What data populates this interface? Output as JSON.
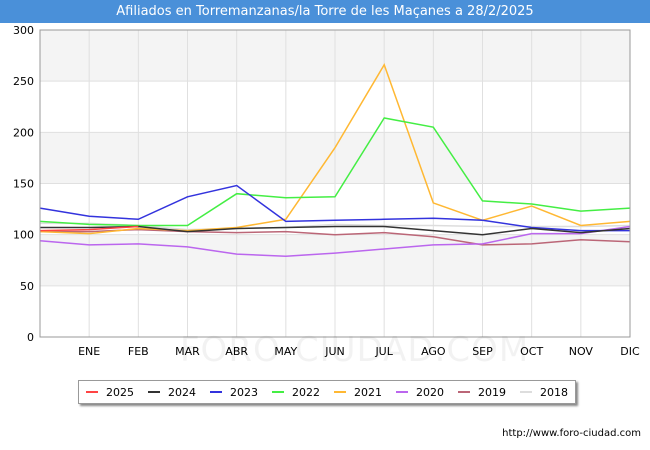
{
  "chart_data": {
    "type": "line",
    "title": "Afiliados en Torremanzanas/la Torre de les Maçanes a 28/2/2025",
    "categories": [
      "",
      "ENE",
      "FEB",
      "MAR",
      "ABR",
      "MAY",
      "JUN",
      "JUL",
      "AGO",
      "SEP",
      "OCT",
      "NOV",
      "DIC"
    ],
    "ylim": [
      0,
      300
    ],
    "yticks": [
      0,
      50,
      100,
      150,
      200,
      250,
      300
    ],
    "grid": true,
    "legend_position": "bottom",
    "series": [
      {
        "name": "2025",
        "color": "#ff4444",
        "values": [
          104,
          105,
          108,
          null,
          null,
          null,
          null,
          null,
          null,
          null,
          null,
          null,
          null
        ]
      },
      {
        "name": "2024",
        "color": "#333333",
        "values": [
          107,
          107,
          108,
          103,
          106,
          107,
          108,
          108,
          104,
          100,
          106,
          102,
          106
        ]
      },
      {
        "name": "2023",
        "color": "#3333dd",
        "values": [
          126,
          118,
          115,
          137,
          148,
          113,
          114,
          115,
          116,
          114,
          107,
          104,
          104
        ]
      },
      {
        "name": "2022",
        "color": "#44ee44",
        "values": [
          113,
          110,
          109,
          109,
          140,
          136,
          137,
          214,
          205,
          133,
          130,
          123,
          126
        ]
      },
      {
        "name": "2021",
        "color": "#ffb833",
        "values": [
          103,
          101,
          106,
          104,
          107,
          115,
          185,
          266,
          131,
          114,
          128,
          109,
          113
        ]
      },
      {
        "name": "2020",
        "color": "#bb66ee",
        "values": [
          94,
          90,
          91,
          88,
          81,
          79,
          82,
          86,
          90,
          91,
          101,
          101,
          108
        ]
      },
      {
        "name": "2019",
        "color": "#bb6677",
        "values": [
          103,
          103,
          105,
          103,
          102,
          103,
          100,
          102,
          98,
          90,
          91,
          95,
          93
        ]
      },
      {
        "name": "2018",
        "color": "#dddddd",
        "values": [
          111,
          111,
          109,
          105,
          106,
          107,
          110,
          109,
          109,
          108,
          108,
          108,
          109
        ]
      }
    ]
  },
  "footer": {
    "url": "http://www.foro-ciudad.com"
  },
  "watermark": "FORO-CIUDAD.COM"
}
